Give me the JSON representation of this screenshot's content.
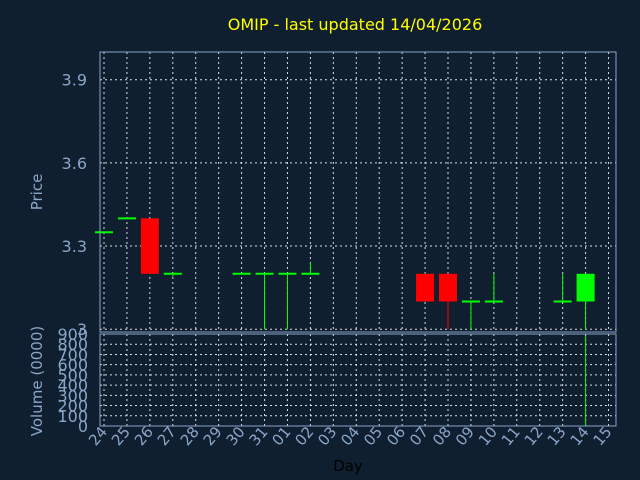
{
  "chart_data": [
    {
      "type": "candlestick",
      "title": "OMIP - last updated 14/04/2026",
      "ylabel": "Price",
      "xlabel": "",
      "ylim": [
        2.99,
        4.0
      ],
      "yticks": [
        "3",
        "3.3",
        "3.6",
        "3.9"
      ],
      "ytick_values": [
        3.0,
        3.3,
        3.6,
        3.9
      ],
      "grid": true,
      "colors": {
        "up": "#00ff00",
        "down": "#ff0000",
        "background": "#0f1f30",
        "grid": "#ffffff"
      },
      "candles": [
        {
          "day": "24",
          "open": 3.35,
          "high": 3.35,
          "low": 3.35,
          "close": 3.35
        },
        {
          "day": "25",
          "open": 3.4,
          "high": 3.4,
          "low": 3.4,
          "close": 3.4
        },
        {
          "day": "26",
          "open": 3.4,
          "high": 3.4,
          "low": 3.2,
          "close": 3.2
        },
        {
          "day": "27",
          "open": 3.2,
          "high": 3.2,
          "low": 3.19,
          "close": 3.2
        },
        {
          "day": "30",
          "open": 3.2,
          "high": 3.2,
          "low": 3.2,
          "close": 3.2
        },
        {
          "day": "31",
          "open": 3.2,
          "high": 3.2,
          "low": 3.0,
          "close": 3.2
        },
        {
          "day": "01",
          "open": 3.2,
          "high": 3.2,
          "low": 3.0,
          "close": 3.2
        },
        {
          "day": "02",
          "open": 3.2,
          "high": 3.24,
          "low": 3.2,
          "close": 3.2
        },
        {
          "day": "07",
          "open": 3.2,
          "high": 3.2,
          "low": 3.1,
          "close": 3.1
        },
        {
          "day": "08",
          "open": 3.2,
          "high": 3.2,
          "low": 3.0,
          "close": 3.1
        },
        {
          "day": "09",
          "open": 3.1,
          "high": 3.1,
          "low": 3.0,
          "close": 3.1
        },
        {
          "day": "10",
          "open": 3.1,
          "high": 3.2,
          "low": 3.1,
          "close": 3.1
        },
        {
          "day": "13",
          "open": 3.1,
          "high": 3.2,
          "low": 3.1,
          "close": 3.1
        },
        {
          "day": "14",
          "open": 3.1,
          "high": 3.2,
          "low": 3.0,
          "close": 3.2
        }
      ]
    },
    {
      "type": "bar",
      "ylabel": "Volume (0000)",
      "xlabel": "Day",
      "ylim": [
        0,
        900
      ],
      "yticks": [
        "0",
        "100",
        "200",
        "300",
        "400",
        "500",
        "600",
        "700",
        "800",
        "900"
      ],
      "ytick_values": [
        0,
        100,
        200,
        300,
        400,
        500,
        600,
        700,
        800,
        900
      ],
      "categories": [
        "24",
        "25",
        "26",
        "27",
        "28",
        "29",
        "30",
        "31",
        "01",
        "02",
        "03",
        "04",
        "05",
        "06",
        "07",
        "08",
        "09",
        "10",
        "11",
        "12",
        "13",
        "14",
        "15"
      ],
      "values": [
        0,
        0,
        0,
        0,
        0,
        0,
        0,
        0,
        0,
        0,
        0,
        0,
        0,
        0,
        0,
        0,
        0,
        0,
        0,
        0,
        0,
        880,
        0
      ],
      "bar_color": "#00ff00",
      "grid": true
    }
  ]
}
